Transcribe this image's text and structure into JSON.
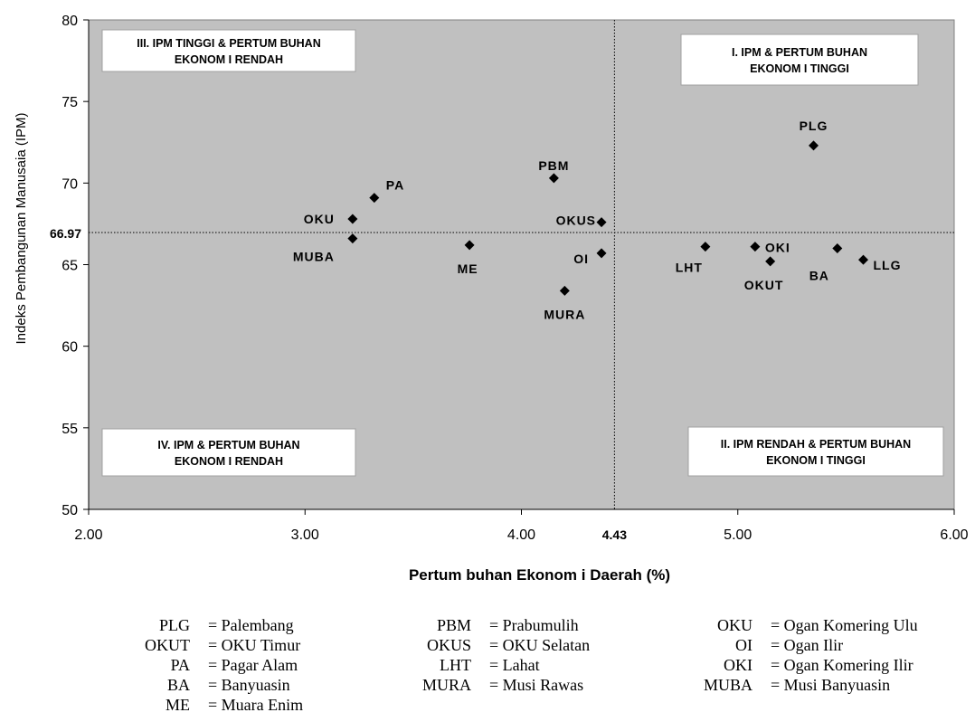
{
  "chart_data": {
    "type": "scatter",
    "xlabel": "Pertum buhan Ekonom i Daerah (%)",
    "ylabel": "Indeks Pembangunan Manusaia (IPM)",
    "xlim": [
      2.0,
      6.0
    ],
    "ylim": [
      50,
      80
    ],
    "x_ticks": [
      "2.00",
      "3.00",
      "4.00",
      "5.00",
      "6.00"
    ],
    "y_ticks": [
      "50",
      "55",
      "60",
      "65",
      "70",
      "75",
      "80"
    ],
    "x_tick_values": [
      2,
      3,
      4,
      5,
      6
    ],
    "y_tick_values": [
      50,
      55,
      60,
      65,
      70,
      75,
      80
    ],
    "reference": {
      "x": 4.43,
      "y": 66.97,
      "x_label": "4.43",
      "y_label": "66.97"
    },
    "background": "#c0c0c0",
    "marker_color": "#000000",
    "points": [
      {
        "label": "PLG",
        "x": 5.35,
        "y": 72.3
      },
      {
        "label": "PA",
        "x": 3.32,
        "y": 69.1
      },
      {
        "label": "OKU",
        "x": 3.22,
        "y": 67.8
      },
      {
        "label": "MUBA",
        "x": 3.22,
        "y": 66.6
      },
      {
        "label": "PBM",
        "x": 4.15,
        "y": 70.3
      },
      {
        "label": "OKUS",
        "x": 4.37,
        "y": 67.6
      },
      {
        "label": "OI",
        "x": 4.37,
        "y": 65.7
      },
      {
        "label": "ME",
        "x": 3.76,
        "y": 66.2
      },
      {
        "label": "MURA",
        "x": 4.2,
        "y": 63.4
      },
      {
        "label": "LHT",
        "x": 4.85,
        "y": 66.1
      },
      {
        "label": "OKI",
        "x": 5.08,
        "y": 66.1
      },
      {
        "label": "OKUT",
        "x": 5.15,
        "y": 65.2
      },
      {
        "label": "BA",
        "x": 5.46,
        "y": 66.0
      },
      {
        "label": "LLG",
        "x": 5.58,
        "y": 65.3
      }
    ],
    "quadrants": {
      "q1": [
        "I.  IPM & PERTUM BUHAN",
        "EKONOM I TINGGI"
      ],
      "q2": [
        "II.  IPM RENDAH & PERTUM BUHAN",
        "EKONOM I TINGGI"
      ],
      "q3": [
        "III.  IPM  TINGGI & PERTUM BUHAN",
        "EKONOM I RENDAH"
      ],
      "q4": [
        "IV.  IPM & PERTUM BUHAN",
        "EKONOM I  RENDAH"
      ]
    }
  },
  "legend": [
    {
      "abbr": "PLG",
      "def": "= Palembang"
    },
    {
      "abbr": "OKUT",
      "def": "= OKU Timur"
    },
    {
      "abbr": "PA",
      "def": "= Pagar Alam"
    },
    {
      "abbr": "BA",
      "def": "= Banyuasin"
    },
    {
      "abbr": "ME",
      "def": "= Muara Enim"
    },
    {
      "abbr": "PBM",
      "def": "= Prabumulih"
    },
    {
      "abbr": "OKUS",
      "def": "= OKU Selatan"
    },
    {
      "abbr": "LHT",
      "def": "= Lahat"
    },
    {
      "abbr": "MURA",
      "def": "= Musi Rawas"
    },
    {
      "abbr": "OKU",
      "def": "= Ogan Komering Ulu"
    },
    {
      "abbr": "OI",
      "def": "= Ogan Ilir"
    },
    {
      "abbr": "OKI",
      "def": "= Ogan Komering Ilir"
    },
    {
      "abbr": "MUBA",
      "def": "= Musi Banyuasin"
    }
  ]
}
